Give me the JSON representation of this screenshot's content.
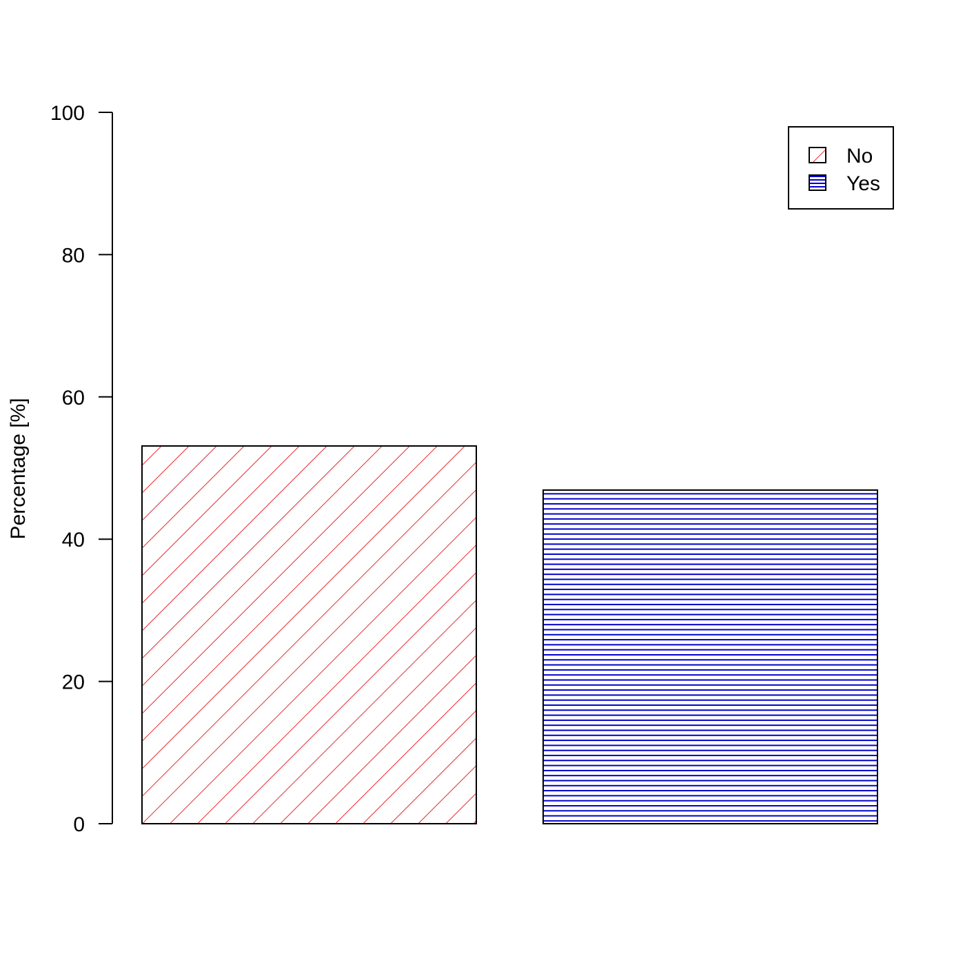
{
  "chart_data": {
    "type": "bar",
    "categories": [
      "No",
      "Yes"
    ],
    "values": [
      53.1,
      46.9
    ],
    "ylabel": "Percentage [%]",
    "xlabel": "",
    "ylim": [
      0,
      100
    ],
    "yticks": [
      0,
      20,
      40,
      60,
      80,
      100
    ],
    "grid": false,
    "legend": {
      "placement": "top-right",
      "entries": [
        {
          "label": "No",
          "pattern": "diagonal-hatch",
          "color": "#e8262b"
        },
        {
          "label": "Yes",
          "pattern": "horizontal-hatch",
          "color": "#0000cc"
        }
      ]
    }
  }
}
